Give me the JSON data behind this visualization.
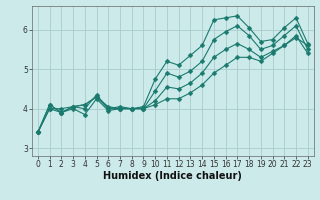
{
  "xlabel": "Humidex (Indice chaleur)",
  "bg_color": "#cceaea",
  "grid_color": "#aacccc",
  "line_color": "#1a7a6e",
  "ylim": [
    2.8,
    6.6
  ],
  "xlim": [
    -0.5,
    23.5
  ],
  "yticks": [
    3,
    4,
    5,
    6
  ],
  "x_ticks": [
    0,
    1,
    2,
    3,
    4,
    5,
    6,
    7,
    8,
    9,
    10,
    11,
    12,
    13,
    14,
    15,
    16,
    17,
    18,
    19,
    20,
    21,
    22,
    23
  ],
  "lines": [
    [
      3.4,
      4.1,
      3.9,
      4.05,
      4.1,
      4.3,
      4.0,
      4.05,
      4.0,
      4.05,
      4.75,
      5.2,
      5.1,
      5.35,
      5.6,
      6.25,
      6.3,
      6.35,
      6.05,
      5.7,
      5.75,
      6.05,
      6.3,
      5.65
    ],
    [
      3.4,
      4.1,
      3.9,
      4.05,
      4.1,
      4.3,
      4.05,
      4.0,
      4.0,
      4.0,
      4.45,
      4.9,
      4.8,
      4.95,
      5.2,
      5.75,
      5.95,
      6.1,
      5.85,
      5.5,
      5.6,
      5.85,
      6.1,
      5.5
    ],
    [
      3.4,
      4.0,
      3.9,
      4.0,
      3.85,
      4.25,
      3.95,
      4.0,
      4.0,
      4.0,
      4.2,
      4.55,
      4.5,
      4.65,
      4.9,
      5.3,
      5.5,
      5.65,
      5.5,
      5.3,
      5.45,
      5.6,
      5.85,
      5.4
    ],
    [
      3.4,
      4.0,
      4.0,
      4.05,
      4.0,
      4.35,
      4.0,
      4.0,
      4.0,
      4.0,
      4.1,
      4.25,
      4.25,
      4.4,
      4.6,
      4.9,
      5.1,
      5.3,
      5.3,
      5.2,
      5.4,
      5.6,
      5.8,
      5.6
    ]
  ],
  "marker_size": 2.5,
  "linewidth": 0.8,
  "tick_fontsize": 5.5,
  "xlabel_fontsize": 7
}
